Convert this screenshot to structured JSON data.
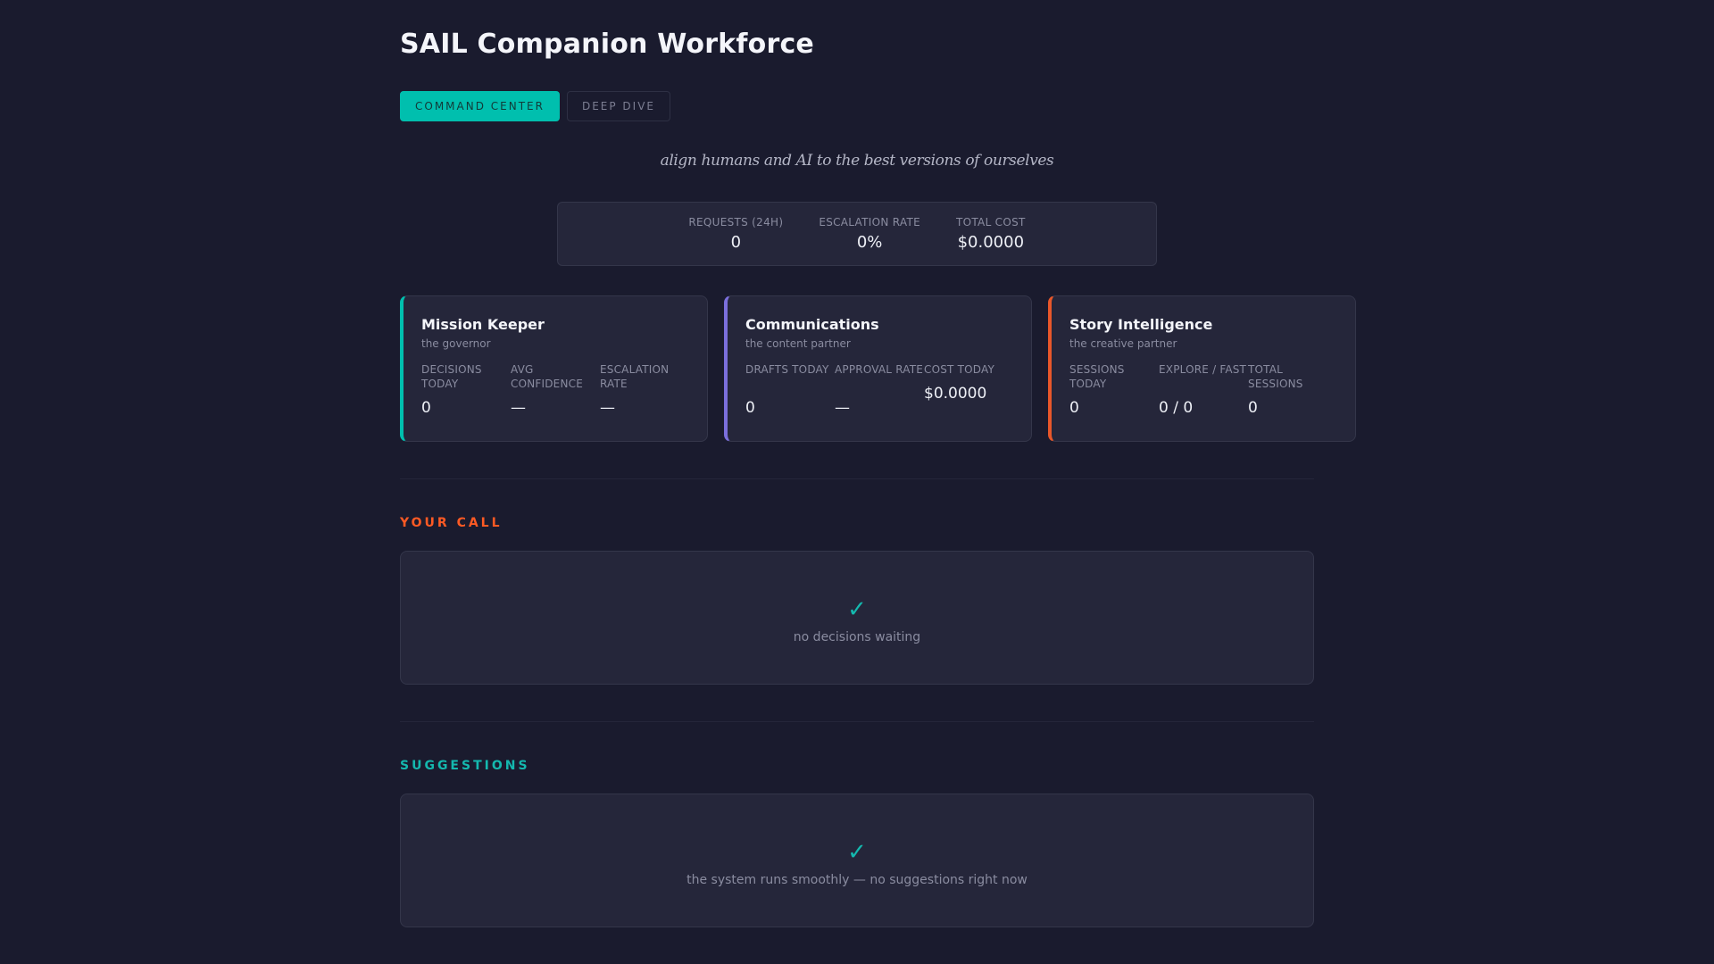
{
  "app": {
    "title": "SAIL Companion Workforce",
    "tagline": "align humans and AI to the best versions of ourselves"
  },
  "tabs": [
    {
      "label": "COMMAND CENTER",
      "active": true
    },
    {
      "label": "DEEP DIVE",
      "active": false
    }
  ],
  "summary": {
    "requests": {
      "label": "REQUESTS (24H)",
      "value": "0"
    },
    "escalation": {
      "label": "ESCALATION RATE",
      "value": "0%"
    },
    "cost": {
      "label": "TOTAL COST",
      "value": "$0.0000"
    }
  },
  "agents": [
    {
      "name": "Mission Keeper",
      "role": "the governor",
      "accent": "#00bfae",
      "metrics": [
        {
          "label": "DECISIONS TODAY",
          "value": "0"
        },
        {
          "label": "AVG CONFIDENCE",
          "value": "—"
        },
        {
          "label": "ESCALATION RATE",
          "value": "—"
        }
      ]
    },
    {
      "name": "Communications",
      "role": "the content partner",
      "accent": "#7b6fdc",
      "metrics": [
        {
          "label": "DRAFTS TODAY",
          "value": "0"
        },
        {
          "label": "APPROVAL RATE",
          "value": "—"
        },
        {
          "label": "COST TODAY",
          "value": "$0.0000"
        }
      ]
    },
    {
      "name": "Story Intelligence",
      "role": "the creative partner",
      "accent": "#e8572a",
      "metrics": [
        {
          "label": "SESSIONS TODAY",
          "value": "0"
        },
        {
          "label": "EXPLORE / FAST",
          "value": "0 / 0"
        },
        {
          "label": "TOTAL SESSIONS",
          "value": "0"
        }
      ]
    }
  ],
  "sections": {
    "your_call": {
      "title": "YOUR CALL",
      "icon": "check-icon",
      "check": "✓",
      "empty_text": "no decisions waiting"
    },
    "suggestions": {
      "title": "SUGGESTIONS",
      "icon": "check-icon",
      "check": "✓",
      "empty_text": "the system runs smoothly — no suggestions right now"
    }
  },
  "colors": {
    "background": "#1a1b2e",
    "card": "#25263a",
    "teal": "#00bfae",
    "orange": "#ff5a24",
    "purple": "#7b6fdc"
  }
}
